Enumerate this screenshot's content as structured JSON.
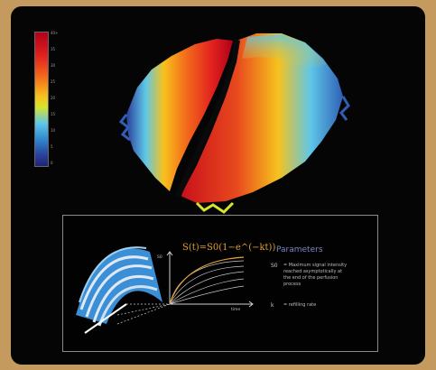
{
  "colorbar": {
    "ticks": [
      "40+",
      "35",
      "30",
      "25",
      "20",
      "15",
      "10",
      "5",
      "0"
    ]
  },
  "inset": {
    "equation": "S(t)=S0(1−e^(−kt))",
    "params_title": "Parameters",
    "params": [
      {
        "symbol": "S0",
        "text": "= Maximum signal intensity reached asymptotically at the end of the perfusion process"
      },
      {
        "symbol": "k",
        "text": "= refilling rate"
      }
    ],
    "ylabel": "S0",
    "xlabel": "time"
  },
  "colors": {
    "frame": "#c49a5e",
    "panel": "#050505",
    "accent": "#e0a030",
    "params": "#7a86c8"
  }
}
